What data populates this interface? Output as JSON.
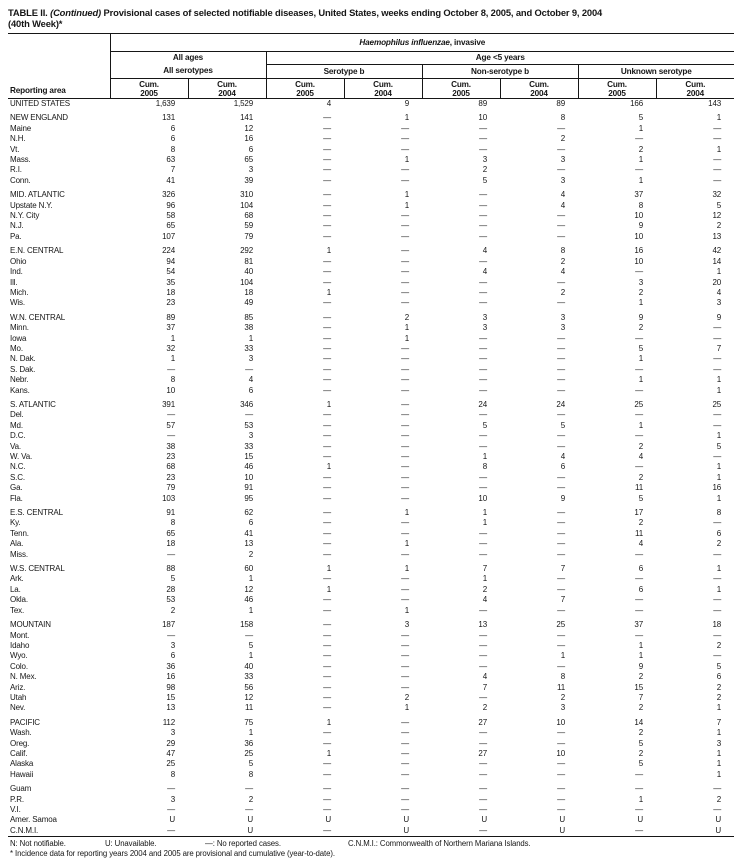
{
  "colors": {
    "ink": "#161616",
    "background": "#ffffff"
  },
  "title": {
    "part1": "TABLE II.",
    "part2_italic": "(Continued)",
    "part3": "Provisional cases of selected notifiable diseases, United States, weeks ending October 8, 2005, and October 9, 2004",
    "line2": "(40th Week)*"
  },
  "header": {
    "reporting_area": "Reporting area",
    "disease_italic": "Haemophilus influenzae",
    "disease_rest": ", invasive",
    "all_ages": "All ages",
    "age_under5": "Age <5 years",
    "all_serotypes": "All serotypes",
    "serotype_b": "Serotype b",
    "non_serotype_b": "Non-serotype b",
    "unknown_serotype": "Unknown serotype",
    "cols": [
      {
        "l1": "Cum.",
        "l2": "2005"
      },
      {
        "l1": "Cum.",
        "l2": "2004"
      },
      {
        "l1": "Cum.",
        "l2": "2005"
      },
      {
        "l1": "Cum.",
        "l2": "2004"
      },
      {
        "l1": "Cum.",
        "l2": "2005"
      },
      {
        "l1": "Cum.",
        "l2": "2004"
      },
      {
        "l1": "Cum.",
        "l2": "2005"
      },
      {
        "l1": "Cum.",
        "l2": "2004"
      }
    ]
  },
  "table": {
    "rows": [
      {
        "area": "UNITED STATES",
        "level": "total",
        "gap": false,
        "v": [
          "1,639",
          "1,529",
          "4",
          "9",
          "89",
          "89",
          "166",
          "143"
        ]
      },
      {
        "area": "NEW ENGLAND",
        "level": "region",
        "gap": true,
        "v": [
          "131",
          "141",
          "—",
          "1",
          "10",
          "8",
          "5",
          "1"
        ]
      },
      {
        "area": "Maine",
        "level": "state",
        "gap": false,
        "v": [
          "6",
          "12",
          "—",
          "—",
          "—",
          "—",
          "1",
          "—"
        ]
      },
      {
        "area": "N.H.",
        "level": "state",
        "gap": false,
        "v": [
          "6",
          "16",
          "—",
          "—",
          "—",
          "2",
          "—",
          "—"
        ]
      },
      {
        "area": "Vt.",
        "level": "state",
        "gap": false,
        "v": [
          "8",
          "6",
          "—",
          "—",
          "—",
          "—",
          "2",
          "1"
        ]
      },
      {
        "area": "Mass.",
        "level": "state",
        "gap": false,
        "v": [
          "63",
          "65",
          "—",
          "1",
          "3",
          "3",
          "1",
          "—"
        ]
      },
      {
        "area": "R.I.",
        "level": "state",
        "gap": false,
        "v": [
          "7",
          "3",
          "—",
          "—",
          "2",
          "—",
          "—",
          "—"
        ]
      },
      {
        "area": "Conn.",
        "level": "state",
        "gap": false,
        "v": [
          "41",
          "39",
          "—",
          "—",
          "5",
          "3",
          "1",
          "—"
        ]
      },
      {
        "area": "MID. ATLANTIC",
        "level": "region",
        "gap": true,
        "v": [
          "326",
          "310",
          "—",
          "1",
          "—",
          "4",
          "37",
          "32"
        ]
      },
      {
        "area": "Upstate N.Y.",
        "level": "state",
        "gap": false,
        "v": [
          "96",
          "104",
          "—",
          "1",
          "—",
          "4",
          "8",
          "5"
        ]
      },
      {
        "area": "N.Y. City",
        "level": "state",
        "gap": false,
        "v": [
          "58",
          "68",
          "—",
          "—",
          "—",
          "—",
          "10",
          "12"
        ]
      },
      {
        "area": "N.J.",
        "level": "state",
        "gap": false,
        "v": [
          "65",
          "59",
          "—",
          "—",
          "—",
          "—",
          "9",
          "2"
        ]
      },
      {
        "area": "Pa.",
        "level": "state",
        "gap": false,
        "v": [
          "107",
          "79",
          "—",
          "—",
          "—",
          "—",
          "10",
          "13"
        ]
      },
      {
        "area": "E.N. CENTRAL",
        "level": "region",
        "gap": true,
        "v": [
          "224",
          "292",
          "1",
          "—",
          "4",
          "8",
          "16",
          "42"
        ]
      },
      {
        "area": "Ohio",
        "level": "state",
        "gap": false,
        "v": [
          "94",
          "81",
          "—",
          "—",
          "—",
          "2",
          "10",
          "14"
        ]
      },
      {
        "area": "Ind.",
        "level": "state",
        "gap": false,
        "v": [
          "54",
          "40",
          "—",
          "—",
          "4",
          "4",
          "—",
          "1"
        ]
      },
      {
        "area": "Ill.",
        "level": "state",
        "gap": false,
        "v": [
          "35",
          "104",
          "—",
          "—",
          "—",
          "—",
          "3",
          "20"
        ]
      },
      {
        "area": "Mich.",
        "level": "state",
        "gap": false,
        "v": [
          "18",
          "18",
          "1",
          "—",
          "—",
          "2",
          "2",
          "4"
        ]
      },
      {
        "area": "Wis.",
        "level": "state",
        "gap": false,
        "v": [
          "23",
          "49",
          "—",
          "—",
          "—",
          "—",
          "1",
          "3"
        ]
      },
      {
        "area": "W.N. CENTRAL",
        "level": "region",
        "gap": true,
        "v": [
          "89",
          "85",
          "—",
          "2",
          "3",
          "3",
          "9",
          "9"
        ]
      },
      {
        "area": "Minn.",
        "level": "state",
        "gap": false,
        "v": [
          "37",
          "38",
          "—",
          "1",
          "3",
          "3",
          "2",
          "—"
        ]
      },
      {
        "area": "Iowa",
        "level": "state",
        "gap": false,
        "v": [
          "1",
          "1",
          "—",
          "1",
          "—",
          "—",
          "—",
          "—"
        ]
      },
      {
        "area": "Mo.",
        "level": "state",
        "gap": false,
        "v": [
          "32",
          "33",
          "—",
          "—",
          "—",
          "—",
          "5",
          "7"
        ]
      },
      {
        "area": "N. Dak.",
        "level": "state",
        "gap": false,
        "v": [
          "1",
          "3",
          "—",
          "—",
          "—",
          "—",
          "1",
          "—"
        ]
      },
      {
        "area": "S. Dak.",
        "level": "state",
        "gap": false,
        "v": [
          "—",
          "—",
          "—",
          "—",
          "—",
          "—",
          "—",
          "—"
        ]
      },
      {
        "area": "Nebr.",
        "level": "state",
        "gap": false,
        "v": [
          "8",
          "4",
          "—",
          "—",
          "—",
          "—",
          "1",
          "1"
        ]
      },
      {
        "area": "Kans.",
        "level": "state",
        "gap": false,
        "v": [
          "10",
          "6",
          "—",
          "—",
          "—",
          "—",
          "—",
          "1"
        ]
      },
      {
        "area": "S. ATLANTIC",
        "level": "region",
        "gap": true,
        "v": [
          "391",
          "346",
          "1",
          "—",
          "24",
          "24",
          "25",
          "25"
        ]
      },
      {
        "area": "Del.",
        "level": "state",
        "gap": false,
        "v": [
          "—",
          "—",
          "—",
          "—",
          "—",
          "—",
          "—",
          "—"
        ]
      },
      {
        "area": "Md.",
        "level": "state",
        "gap": false,
        "v": [
          "57",
          "53",
          "—",
          "—",
          "5",
          "5",
          "1",
          "—"
        ]
      },
      {
        "area": "D.C.",
        "level": "state",
        "gap": false,
        "v": [
          "—",
          "3",
          "—",
          "—",
          "—",
          "—",
          "—",
          "1"
        ]
      },
      {
        "area": "Va.",
        "level": "state",
        "gap": false,
        "v": [
          "38",
          "33",
          "—",
          "—",
          "—",
          "—",
          "2",
          "5"
        ]
      },
      {
        "area": "W. Va.",
        "level": "state",
        "gap": false,
        "v": [
          "23",
          "15",
          "—",
          "—",
          "1",
          "4",
          "4",
          "—"
        ]
      },
      {
        "area": "N.C.",
        "level": "state",
        "gap": false,
        "v": [
          "68",
          "46",
          "1",
          "—",
          "8",
          "6",
          "—",
          "1"
        ]
      },
      {
        "area": "S.C.",
        "level": "state",
        "gap": false,
        "v": [
          "23",
          "10",
          "—",
          "—",
          "—",
          "—",
          "2",
          "1"
        ]
      },
      {
        "area": "Ga.",
        "level": "state",
        "gap": false,
        "v": [
          "79",
          "91",
          "—",
          "—",
          "—",
          "—",
          "11",
          "16"
        ]
      },
      {
        "area": "Fla.",
        "level": "state",
        "gap": false,
        "v": [
          "103",
          "95",
          "—",
          "—",
          "10",
          "9",
          "5",
          "1"
        ]
      },
      {
        "area": "E.S. CENTRAL",
        "level": "region",
        "gap": true,
        "v": [
          "91",
          "62",
          "—",
          "1",
          "1",
          "—",
          "17",
          "8"
        ]
      },
      {
        "area": "Ky.",
        "level": "state",
        "gap": false,
        "v": [
          "8",
          "6",
          "—",
          "—",
          "1",
          "—",
          "2",
          "—"
        ]
      },
      {
        "area": "Tenn.",
        "level": "state",
        "gap": false,
        "v": [
          "65",
          "41",
          "—",
          "—",
          "—",
          "—",
          "11",
          "6"
        ]
      },
      {
        "area": "Ala.",
        "level": "state",
        "gap": false,
        "v": [
          "18",
          "13",
          "—",
          "1",
          "—",
          "—",
          "4",
          "2"
        ]
      },
      {
        "area": "Miss.",
        "level": "state",
        "gap": false,
        "v": [
          "—",
          "2",
          "—",
          "—",
          "—",
          "—",
          "—",
          "—"
        ]
      },
      {
        "area": "W.S. CENTRAL",
        "level": "region",
        "gap": true,
        "v": [
          "88",
          "60",
          "1",
          "1",
          "7",
          "7",
          "6",
          "1"
        ]
      },
      {
        "area": "Ark.",
        "level": "state",
        "gap": false,
        "v": [
          "5",
          "1",
          "—",
          "—",
          "1",
          "—",
          "—",
          "—"
        ]
      },
      {
        "area": "La.",
        "level": "state",
        "gap": false,
        "v": [
          "28",
          "12",
          "1",
          "—",
          "2",
          "—",
          "6",
          "1"
        ]
      },
      {
        "area": "Okla.",
        "level": "state",
        "gap": false,
        "v": [
          "53",
          "46",
          "—",
          "—",
          "4",
          "7",
          "—",
          "—"
        ]
      },
      {
        "area": "Tex.",
        "level": "state",
        "gap": false,
        "v": [
          "2",
          "1",
          "—",
          "1",
          "—",
          "—",
          "—",
          "—"
        ]
      },
      {
        "area": "MOUNTAIN",
        "level": "region",
        "gap": true,
        "v": [
          "187",
          "158",
          "—",
          "3",
          "13",
          "25",
          "37",
          "18"
        ]
      },
      {
        "area": "Mont.",
        "level": "state",
        "gap": false,
        "v": [
          "—",
          "—",
          "—",
          "—",
          "—",
          "—",
          "—",
          "—"
        ]
      },
      {
        "area": "Idaho",
        "level": "state",
        "gap": false,
        "v": [
          "3",
          "5",
          "—",
          "—",
          "—",
          "—",
          "1",
          "2"
        ]
      },
      {
        "area": "Wyo.",
        "level": "state",
        "gap": false,
        "v": [
          "6",
          "1",
          "—",
          "—",
          "—",
          "1",
          "1",
          "—"
        ]
      },
      {
        "area": "Colo.",
        "level": "state",
        "gap": false,
        "v": [
          "36",
          "40",
          "—",
          "—",
          "—",
          "—",
          "9",
          "5"
        ]
      },
      {
        "area": "N. Mex.",
        "level": "state",
        "gap": false,
        "v": [
          "16",
          "33",
          "—",
          "—",
          "4",
          "8",
          "2",
          "6"
        ]
      },
      {
        "area": "Ariz.",
        "level": "state",
        "gap": false,
        "v": [
          "98",
          "56",
          "—",
          "—",
          "7",
          "11",
          "15",
          "2"
        ]
      },
      {
        "area": "Utah",
        "level": "state",
        "gap": false,
        "v": [
          "15",
          "12",
          "—",
          "2",
          "—",
          "2",
          "7",
          "2"
        ]
      },
      {
        "area": "Nev.",
        "level": "state",
        "gap": false,
        "v": [
          "13",
          "11",
          "—",
          "1",
          "2",
          "3",
          "2",
          "1"
        ]
      },
      {
        "area": "PACIFIC",
        "level": "region",
        "gap": true,
        "v": [
          "112",
          "75",
          "1",
          "—",
          "27",
          "10",
          "14",
          "7"
        ]
      },
      {
        "area": "Wash.",
        "level": "state",
        "gap": false,
        "v": [
          "3",
          "1",
          "—",
          "—",
          "—",
          "—",
          "2",
          "1"
        ]
      },
      {
        "area": "Oreg.",
        "level": "state",
        "gap": false,
        "v": [
          "29",
          "36",
          "—",
          "—",
          "—",
          "—",
          "5",
          "3"
        ]
      },
      {
        "area": "Calif.",
        "level": "state",
        "gap": false,
        "v": [
          "47",
          "25",
          "1",
          "—",
          "27",
          "10",
          "2",
          "1"
        ]
      },
      {
        "area": "Alaska",
        "level": "state",
        "gap": false,
        "v": [
          "25",
          "5",
          "—",
          "—",
          "—",
          "—",
          "5",
          "1"
        ]
      },
      {
        "area": "Hawaii",
        "level": "state",
        "gap": false,
        "v": [
          "8",
          "8",
          "—",
          "—",
          "—",
          "—",
          "—",
          "1"
        ]
      },
      {
        "area": "Guam",
        "level": "territory",
        "gap": true,
        "v": [
          "—",
          "—",
          "—",
          "—",
          "—",
          "—",
          "—",
          "—"
        ]
      },
      {
        "area": "P.R.",
        "level": "territory",
        "gap": false,
        "v": [
          "3",
          "2",
          "—",
          "—",
          "—",
          "—",
          "1",
          "2"
        ]
      },
      {
        "area": "V.I.",
        "level": "territory",
        "gap": false,
        "v": [
          "—",
          "—",
          "—",
          "—",
          "—",
          "—",
          "—",
          "—"
        ]
      },
      {
        "area": "Amer. Samoa",
        "level": "territory",
        "gap": false,
        "v": [
          "U",
          "U",
          "U",
          "U",
          "U",
          "U",
          "U",
          "U"
        ]
      },
      {
        "area": "C.N.M.I.",
        "level": "territory",
        "gap": false,
        "v": [
          "—",
          "U",
          "—",
          "U",
          "—",
          "U",
          "—",
          "U"
        ]
      }
    ]
  },
  "footnotes": {
    "n": "N: Not notifiable.",
    "u": "U: Unavailable.",
    "dash": "—: No reported cases.",
    "cnmi": "C.N.M.I.: Commonwealth of Northern Mariana Islands.",
    "asterisk": "* Incidence data for reporting years 2004 and 2005 are provisional and cumulative (year-to-date)."
  }
}
